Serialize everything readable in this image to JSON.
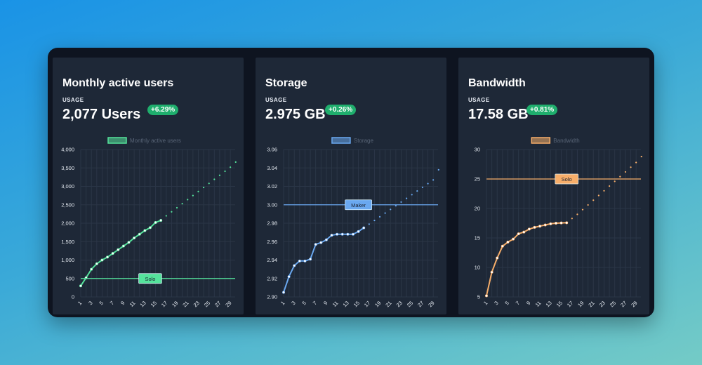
{
  "cards": [
    {
      "title": "Monthly active users",
      "usage_label": "USAGE",
      "value": "2,077 Users",
      "change": "+6.29%",
      "accent": "#55e39c",
      "chart_data": {
        "type": "line",
        "legend": "Monthly active users",
        "x": [
          1,
          2,
          3,
          4,
          5,
          6,
          7,
          8,
          9,
          10,
          11,
          12,
          13,
          14,
          15,
          16,
          17,
          18,
          19,
          20,
          21,
          22,
          23,
          24,
          25,
          26,
          27,
          28,
          29
        ],
        "x_tick_labels": [
          "1",
          "3",
          "5",
          "7",
          "9",
          "11",
          "13",
          "15",
          "17",
          "19",
          "21",
          "23",
          "25",
          "27",
          "29"
        ],
        "ylim": [
          0,
          4000
        ],
        "y_ticks": [
          0,
          500,
          1000,
          1500,
          2000,
          2500,
          3000,
          3500,
          4000
        ],
        "y_tick_labels": [
          "0",
          "500",
          "1,000",
          "1,500",
          "2,000",
          "2,500",
          "3,000",
          "3,500",
          "4,000"
        ],
        "series": [
          {
            "style": "solid",
            "x": [
              1,
              2,
              3,
              4,
              5,
              6,
              7,
              8,
              9,
              10,
              11,
              12,
              13,
              14,
              15,
              16
            ],
            "values": [
              300,
              520,
              750,
              900,
              1000,
              1080,
              1180,
              1280,
              1380,
              1480,
              1600,
              1700,
              1800,
              1880,
              2020,
              2077
            ]
          },
          {
            "style": "dotted",
            "x": [
              16,
              17,
              18,
              19,
              20,
              21,
              22,
              23,
              24,
              25,
              26,
              27,
              28,
              29,
              30
            ],
            "values": [
              2077,
              2200,
              2310,
              2420,
              2530,
              2640,
              2750,
              2860,
              2970,
              3080,
              3190,
              3300,
              3410,
              3520,
              3660
            ]
          }
        ],
        "threshold": {
          "value": 500,
          "label": "Solo",
          "label_x": 14
        }
      }
    },
    {
      "title": "Storage",
      "usage_label": "USAGE",
      "value": "2.975 GB",
      "change": "+0.26%",
      "accent": "#6aa8f0",
      "chart_data": {
        "type": "line",
        "legend": "Storage",
        "x": [
          1,
          2,
          3,
          4,
          5,
          6,
          7,
          8,
          9,
          10,
          11,
          12,
          13,
          14,
          15,
          16,
          17,
          18,
          19,
          20,
          21,
          22,
          23,
          24,
          25,
          26,
          27,
          28,
          29
        ],
        "x_tick_labels": [
          "1",
          "3",
          "5",
          "7",
          "9",
          "11",
          "13",
          "15",
          "17",
          "19",
          "21",
          "23",
          "25",
          "27",
          "29"
        ],
        "ylim": [
          2.9,
          3.06
        ],
        "y_ticks": [
          2.9,
          2.92,
          2.94,
          2.96,
          2.98,
          3.0,
          3.02,
          3.04,
          3.06
        ],
        "y_tick_labels": [
          "2.90",
          "2.92",
          "2.94",
          "2.96",
          "2.98",
          "3.00",
          "3.02",
          "3.04",
          "3.06"
        ],
        "series": [
          {
            "style": "solid",
            "x": [
              1,
              2,
              3,
              4,
              5,
              6,
              7,
              8,
              9,
              10,
              11,
              12,
              13,
              14,
              15,
              16
            ],
            "values": [
              2.905,
              2.922,
              2.934,
              2.939,
              2.939,
              2.941,
              2.957,
              2.959,
              2.962,
              2.967,
              2.968,
              2.968,
              2.968,
              2.968,
              2.971,
              2.975
            ]
          },
          {
            "style": "dotted",
            "x": [
              16,
              17,
              18,
              19,
              20,
              21,
              22,
              23,
              24,
              25,
              26,
              27,
              28,
              29,
              30
            ],
            "values": [
              2.975,
              2.979,
              2.983,
              2.987,
              2.991,
              2.995,
              2.999,
              3.003,
              3.007,
              3.011,
              3.015,
              3.019,
              3.023,
              3.027,
              3.038
            ]
          }
        ],
        "threshold": {
          "value": 3.0,
          "label": "Maker",
          "label_x": 15
        }
      }
    },
    {
      "title": "Bandwidth",
      "usage_label": "USAGE",
      "value": "17.58 GB",
      "change": "+0.81%",
      "accent": "#f7ae6a",
      "chart_data": {
        "type": "line",
        "legend": "Bandwidth",
        "x": [
          1,
          2,
          3,
          4,
          5,
          6,
          7,
          8,
          9,
          10,
          11,
          12,
          13,
          14,
          15,
          16,
          17,
          18,
          19,
          20,
          21,
          22,
          23,
          24,
          25,
          26,
          27,
          28,
          29
        ],
        "x_tick_labels": [
          "1",
          "3",
          "5",
          "7",
          "9",
          "11",
          "13",
          "15",
          "17",
          "19",
          "21",
          "23",
          "25",
          "27",
          "29"
        ],
        "ylim": [
          5,
          30
        ],
        "y_ticks": [
          5,
          10,
          15,
          20,
          25,
          30
        ],
        "y_tick_labels": [
          "5",
          "10",
          "15",
          "20",
          "25",
          "30"
        ],
        "series": [
          {
            "style": "solid",
            "x": [
              1,
              2,
              3,
              4,
              5,
              6,
              7,
              8,
              9,
              10,
              11,
              12,
              13,
              14,
              15,
              16
            ],
            "values": [
              5.2,
              9.2,
              11.6,
              13.6,
              14.3,
              14.8,
              15.7,
              16.0,
              16.5,
              16.8,
              17.0,
              17.2,
              17.4,
              17.5,
              17.55,
              17.58
            ]
          },
          {
            "style": "dotted",
            "x": [
              16,
              17,
              18,
              19,
              20,
              21,
              22,
              23,
              24,
              25,
              26,
              27,
              28,
              29,
              30
            ],
            "values": [
              17.58,
              18.3,
              19.0,
              19.8,
              20.6,
              21.4,
              22.2,
              23.0,
              23.8,
              24.6,
              25.4,
              26.2,
              27.0,
              27.8,
              28.8
            ]
          }
        ],
        "threshold": {
          "value": 25,
          "label": "Solo",
          "label_x": 16
        }
      }
    }
  ]
}
